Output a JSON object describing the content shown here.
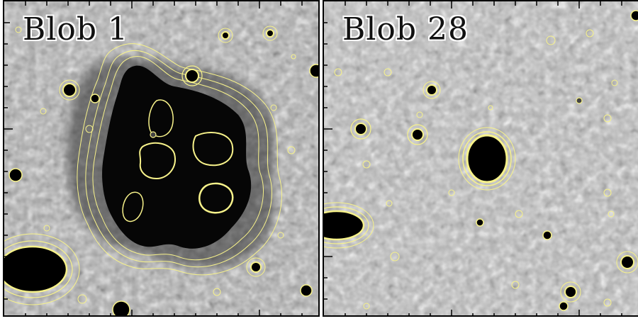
{
  "panels": [
    {
      "id": "left",
      "label": "Blob 1"
    },
    {
      "id": "right",
      "label": "Blob 28"
    }
  ],
  "colors": {
    "contour": "#f7f28a",
    "background_gray": "#a9a9a9",
    "source_black": "#000000",
    "frame": "#000000"
  }
}
